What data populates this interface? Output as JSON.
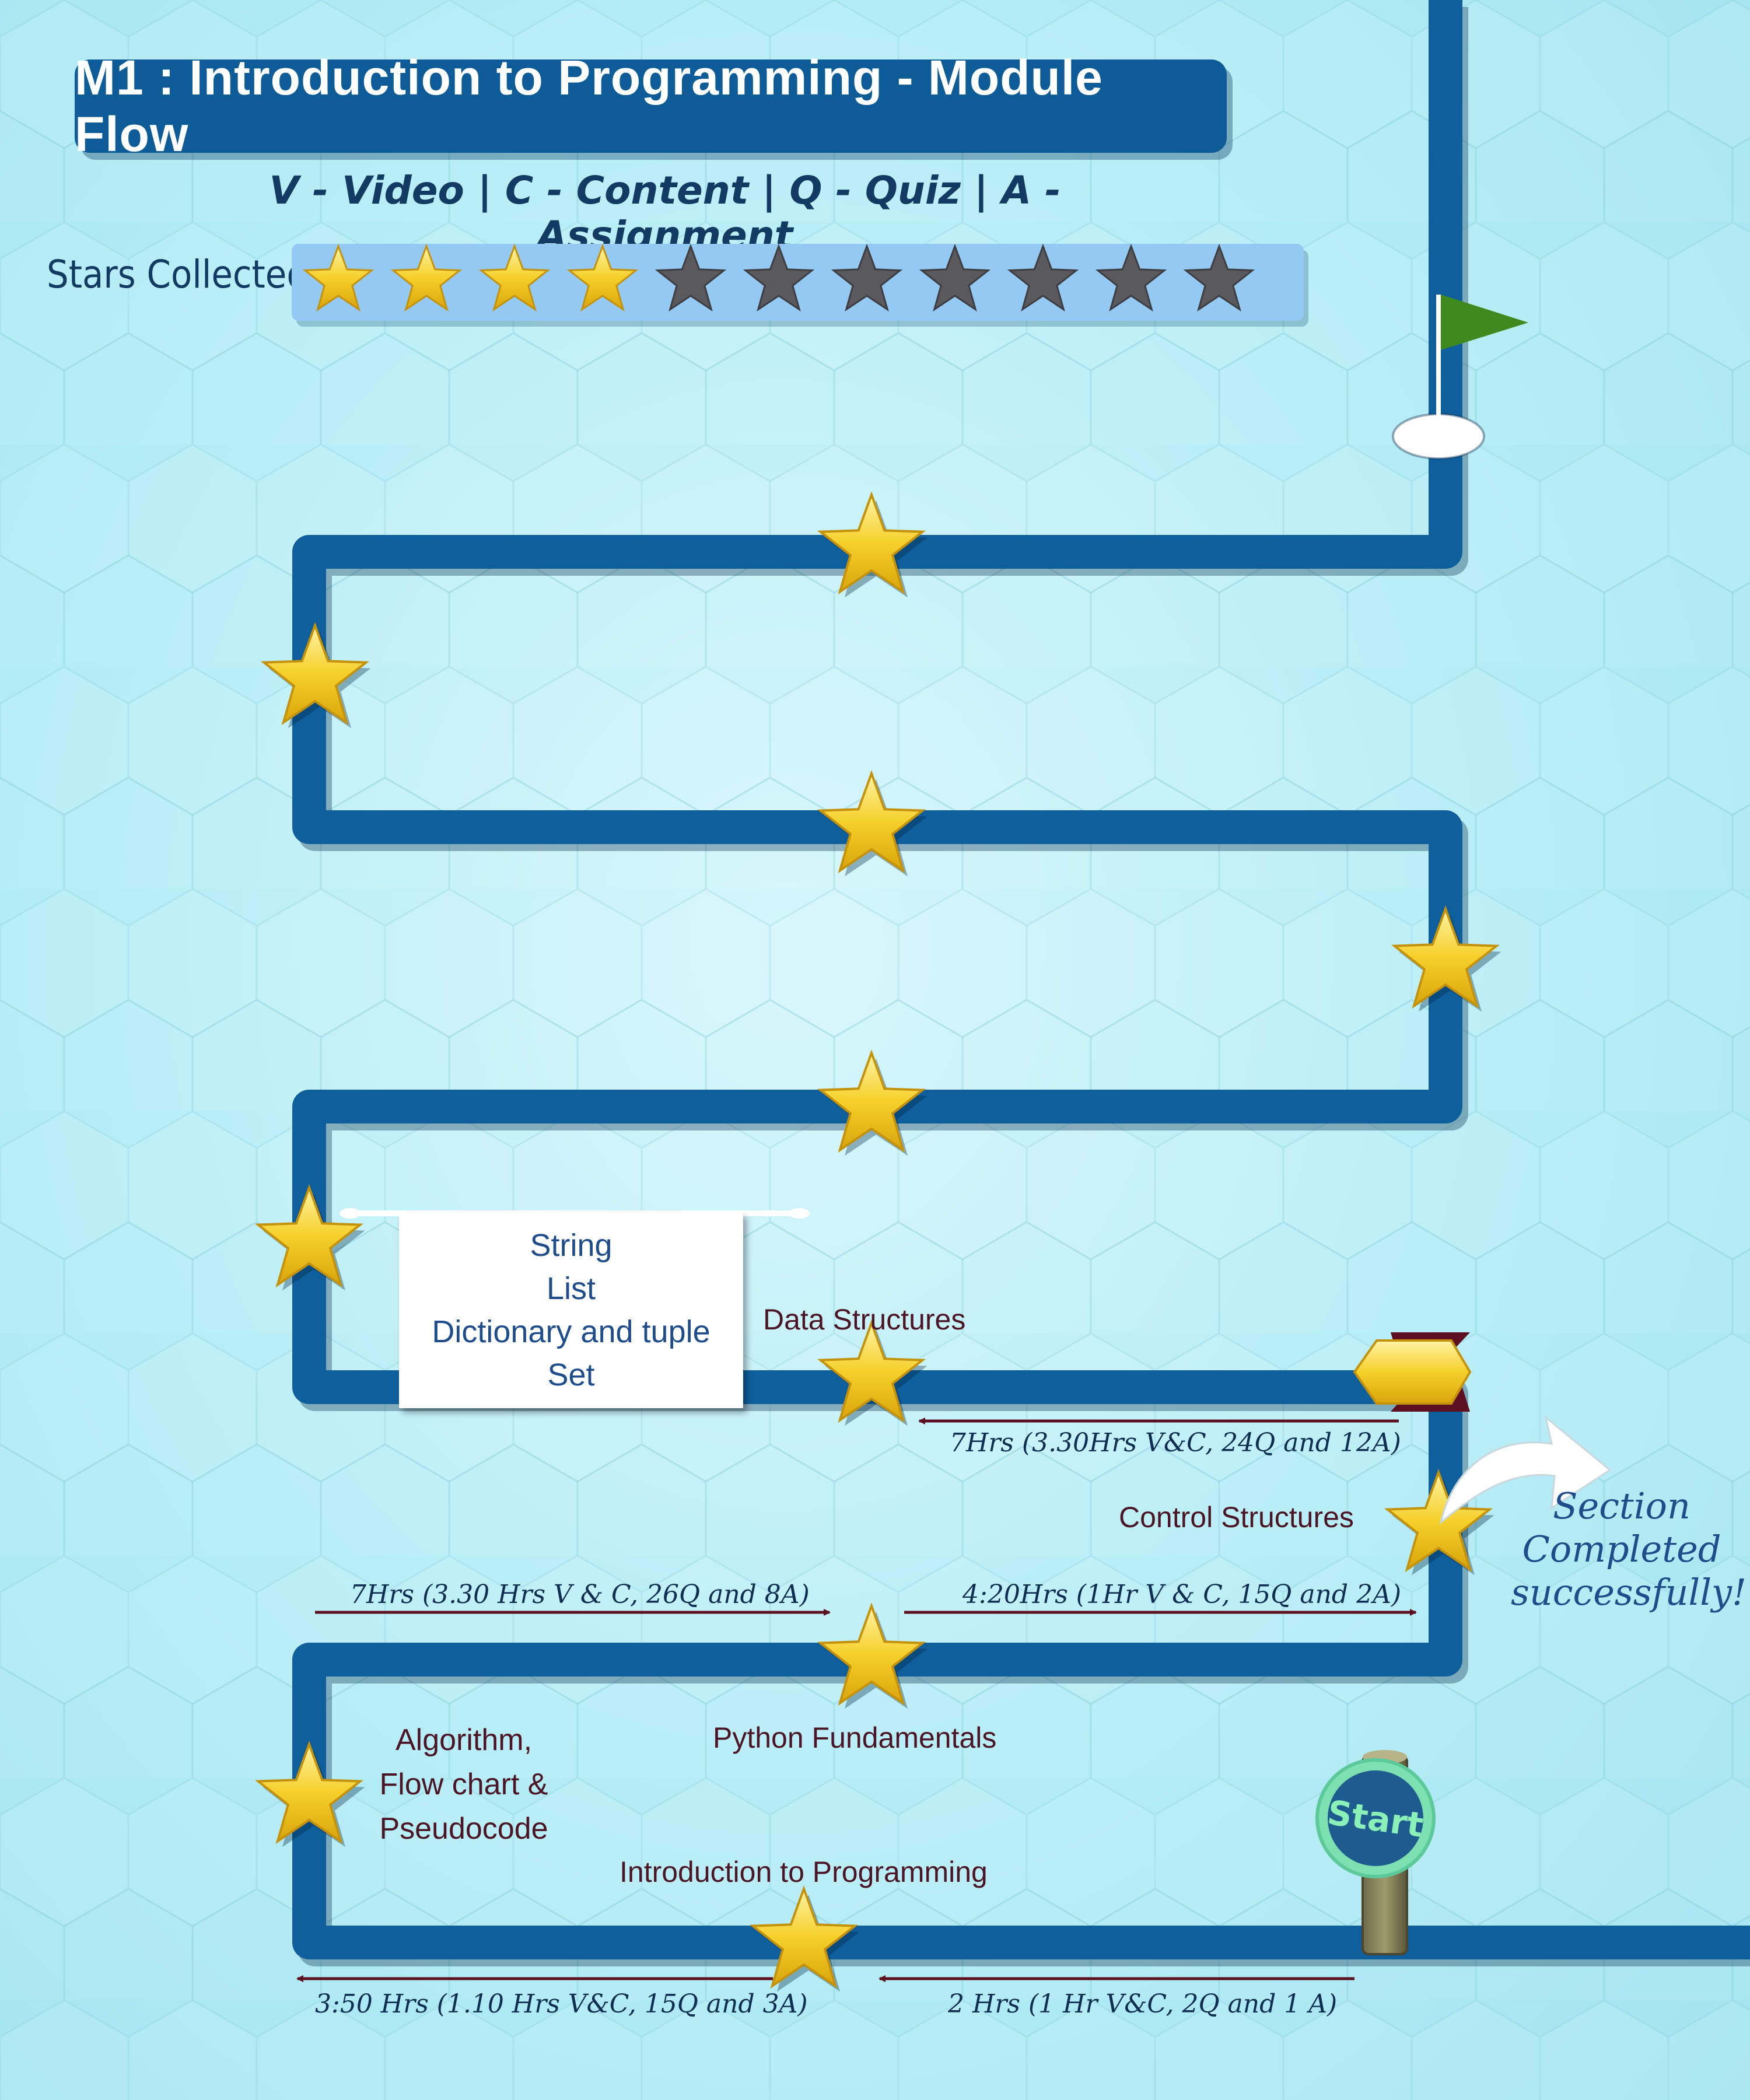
{
  "header": {
    "title": "M1 : Introduction to Programming - Module Flow",
    "legend": "V - Video | C - Content | Q - Quiz | A - Assignment"
  },
  "stars": {
    "label": "Stars Collected",
    "total": 11,
    "collected": 4,
    "filled_color": "#f5d02a",
    "empty_color": "#5a5a5e"
  },
  "colors": {
    "path": "#0f5f9c",
    "label": "#4b1525",
    "duration": "#102e52",
    "arrow": "#5c1020",
    "accent_star": "#f2c91f"
  },
  "start_sign": {
    "label": "Start"
  },
  "sections": {
    "introduction": {
      "label": "Introduction to Programming"
    },
    "algorithm": {
      "lines": [
        "Algorithm,",
        "Flow chart &",
        "Pseudocode"
      ]
    },
    "python_fundamentals": {
      "label": "Python Fundamentals"
    },
    "control_structures": {
      "label": "Control Structures"
    },
    "data_structures": {
      "label": "Data Structures"
    }
  },
  "durations": {
    "d1": "2 Hrs (1 Hr V&C, 2Q and 1 A)",
    "d2": "3:50 Hrs (1.10 Hrs V&C, 15Q and 3A)",
    "d3": "7Hrs (3.30 Hrs V & C, 26Q and 8A)",
    "d4": "4:20Hrs (1Hr V & C, 15Q and 2A)",
    "d5": "7Hrs (3.30Hrs V&C, 24Q and 12A)"
  },
  "data_structure_topics": [
    "String",
    "List",
    "Dictionary and tuple",
    "Set"
  ],
  "completion_message": [
    "Section",
    "Completed",
    "successfully!"
  ],
  "finish": {
    "icon": "flag-icon"
  }
}
